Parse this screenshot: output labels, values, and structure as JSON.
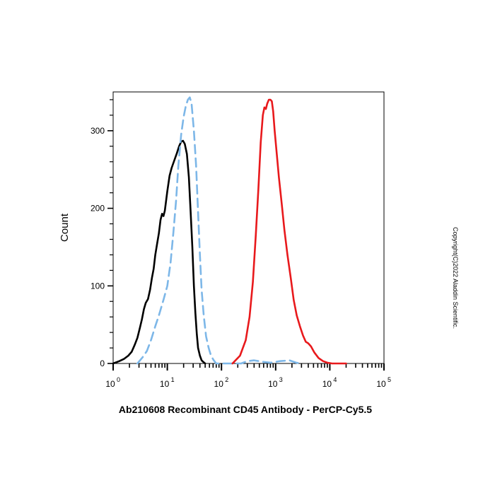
{
  "chart_data": {
    "type": "line",
    "xscale": "log",
    "xlim": [
      1,
      100000
    ],
    "ylim": [
      0,
      350
    ],
    "ylabel": "Count",
    "xlabel": "",
    "grid": false,
    "legend": "none",
    "yticks": [
      {
        "value": 0,
        "label": "0"
      },
      {
        "value": 100,
        "label": "100"
      },
      {
        "value": 200,
        "label": "200"
      },
      {
        "value": 300,
        "label": "300"
      }
    ],
    "xticks": [
      {
        "value": 1,
        "base": "10",
        "exp": "0"
      },
      {
        "value": 10,
        "base": "10",
        "exp": "1"
      },
      {
        "value": 100,
        "base": "10",
        "exp": "2"
      },
      {
        "value": 1000,
        "base": "10",
        "exp": "3"
      },
      {
        "value": 10000,
        "base": "10",
        "exp": "4"
      },
      {
        "value": 100000,
        "base": "10",
        "exp": "5"
      }
    ],
    "series": [
      {
        "color": "#000000",
        "dash": "solid",
        "points": [
          [
            1.0,
            0
          ],
          [
            1.3,
            3
          ],
          [
            1.6,
            6
          ],
          [
            1.9,
            10
          ],
          [
            2.2,
            15
          ],
          [
            2.5,
            24
          ],
          [
            2.8,
            33
          ],
          [
            3.1,
            45
          ],
          [
            3.4,
            57
          ],
          [
            3.7,
            70
          ],
          [
            4.0,
            78
          ],
          [
            4.4,
            83
          ],
          [
            4.8,
            95
          ],
          [
            5.2,
            110
          ],
          [
            5.6,
            122
          ],
          [
            6.0,
            140
          ],
          [
            6.5,
            155
          ],
          [
            7.0,
            168
          ],
          [
            7.5,
            185
          ],
          [
            8.0,
            193
          ],
          [
            8.5,
            190
          ],
          [
            9.0,
            197
          ],
          [
            10.0,
            222
          ],
          [
            11.0,
            242
          ],
          [
            12.0,
            252
          ],
          [
            13.5,
            262
          ],
          [
            15.0,
            271
          ],
          [
            16.5,
            280
          ],
          [
            18.0,
            286
          ],
          [
            19.5,
            287
          ],
          [
            21.0,
            283
          ],
          [
            23.0,
            270
          ],
          [
            25.0,
            240
          ],
          [
            27.0,
            195
          ],
          [
            29.0,
            150
          ],
          [
            31.0,
            100
          ],
          [
            33.0,
            65
          ],
          [
            35.0,
            38
          ],
          [
            37.0,
            20
          ],
          [
            40.0,
            10
          ],
          [
            43.0,
            4
          ],
          [
            46.0,
            2
          ],
          [
            50.0,
            0
          ]
        ]
      },
      {
        "color": "#7db7e8",
        "dash": "dashed",
        "points": [
          [
            2.8,
            0
          ],
          [
            3.5,
            8
          ],
          [
            4.2,
            16
          ],
          [
            5.0,
            30
          ],
          [
            6.0,
            48
          ],
          [
            7.0,
            62
          ],
          [
            8.5,
            82
          ],
          [
            10.0,
            100
          ],
          [
            11.5,
            130
          ],
          [
            13.0,
            170
          ],
          [
            14.5,
            210
          ],
          [
            16.0,
            255
          ],
          [
            18.0,
            295
          ],
          [
            20.0,
            318
          ],
          [
            22.0,
            332
          ],
          [
            24.0,
            340
          ],
          [
            26.0,
            343
          ],
          [
            28.0,
            335
          ],
          [
            31.0,
            300
          ],
          [
            34.0,
            255
          ],
          [
            37.0,
            195
          ],
          [
            40.0,
            140
          ],
          [
            43.0,
            95
          ],
          [
            47.0,
            62
          ],
          [
            52.0,
            35
          ],
          [
            58.0,
            20
          ],
          [
            64.0,
            10
          ],
          [
            72.0,
            4
          ],
          [
            80.0,
            0
          ],
          [
            230,
            0
          ],
          [
            300,
            3
          ],
          [
            400,
            4
          ],
          [
            600,
            2
          ],
          [
            800,
            1
          ],
          [
            1200,
            3
          ],
          [
            1800,
            4
          ],
          [
            2400,
            1
          ],
          [
            3000,
            0
          ]
        ]
      },
      {
        "color": "#e8191c",
        "dash": "solid",
        "points": [
          [
            160,
            0
          ],
          [
            220,
            10
          ],
          [
            280,
            30
          ],
          [
            330,
            60
          ],
          [
            380,
            105
          ],
          [
            430,
            165
          ],
          [
            480,
            225
          ],
          [
            530,
            285
          ],
          [
            580,
            320
          ],
          [
            620,
            330
          ],
          [
            660,
            328
          ],
          [
            700,
            335
          ],
          [
            750,
            340
          ],
          [
            800,
            340
          ],
          [
            850,
            338
          ],
          [
            900,
            325
          ],
          [
            960,
            300
          ],
          [
            1050,
            270
          ],
          [
            1150,
            240
          ],
          [
            1300,
            205
          ],
          [
            1450,
            172
          ],
          [
            1650,
            140
          ],
          [
            1900,
            110
          ],
          [
            2150,
            82
          ],
          [
            2450,
            62
          ],
          [
            2800,
            48
          ],
          [
            3200,
            36
          ],
          [
            3600,
            28
          ],
          [
            4000,
            26
          ],
          [
            4500,
            22
          ],
          [
            5200,
            14
          ],
          [
            6200,
            7
          ],
          [
            7500,
            3
          ],
          [
            9000,
            1
          ],
          [
            11000,
            0
          ],
          [
            20000,
            0
          ]
        ]
      }
    ]
  },
  "caption": "Ab210608 Recombinant CD45 Antibody - PerCP-Cy5.5",
  "copyright": "Copyright(C)2022 Aladdin Scientific."
}
